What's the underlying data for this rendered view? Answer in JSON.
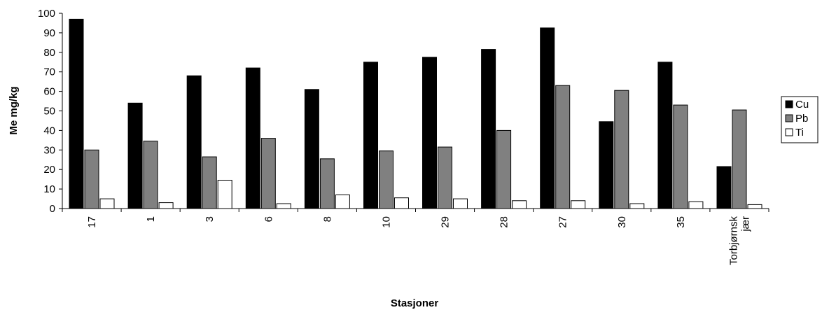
{
  "chart_data": {
    "type": "bar",
    "title": "",
    "xlabel": "Stasjoner",
    "ylabel": "Me mg/kg",
    "ylim": [
      0,
      100
    ],
    "yticks": [
      0,
      10,
      20,
      30,
      40,
      50,
      60,
      70,
      80,
      90,
      100
    ],
    "grid": false,
    "legend_position": "right",
    "categories": [
      "17",
      "1",
      "3",
      "6",
      "8",
      "10",
      "29",
      "28",
      "27",
      "30",
      "35",
      "Torbjørnsk jær"
    ],
    "category_label_lines": [
      [
        "17"
      ],
      [
        "1"
      ],
      [
        "3"
      ],
      [
        "6"
      ],
      [
        "8"
      ],
      [
        "10"
      ],
      [
        "29"
      ],
      [
        "28"
      ],
      [
        "27"
      ],
      [
        "30"
      ],
      [
        "35"
      ],
      [
        "Torbjørnsk",
        "jær"
      ]
    ],
    "series": [
      {
        "name": "Cu",
        "color": "#000000",
        "values": [
          97,
          54,
          68,
          72,
          61,
          75,
          77.5,
          81.5,
          92.5,
          44.5,
          75,
          21.5
        ]
      },
      {
        "name": "Pb",
        "color": "#808080",
        "values": [
          30,
          34.5,
          26.5,
          36,
          25.5,
          29.5,
          31.5,
          40,
          63,
          60.5,
          53,
          50.5
        ]
      },
      {
        "name": "Ti",
        "color": "#ffffff",
        "values": [
          5,
          3,
          14.5,
          2.5,
          7,
          5.5,
          5,
          4,
          4,
          2.5,
          3.5,
          2
        ]
      }
    ]
  }
}
